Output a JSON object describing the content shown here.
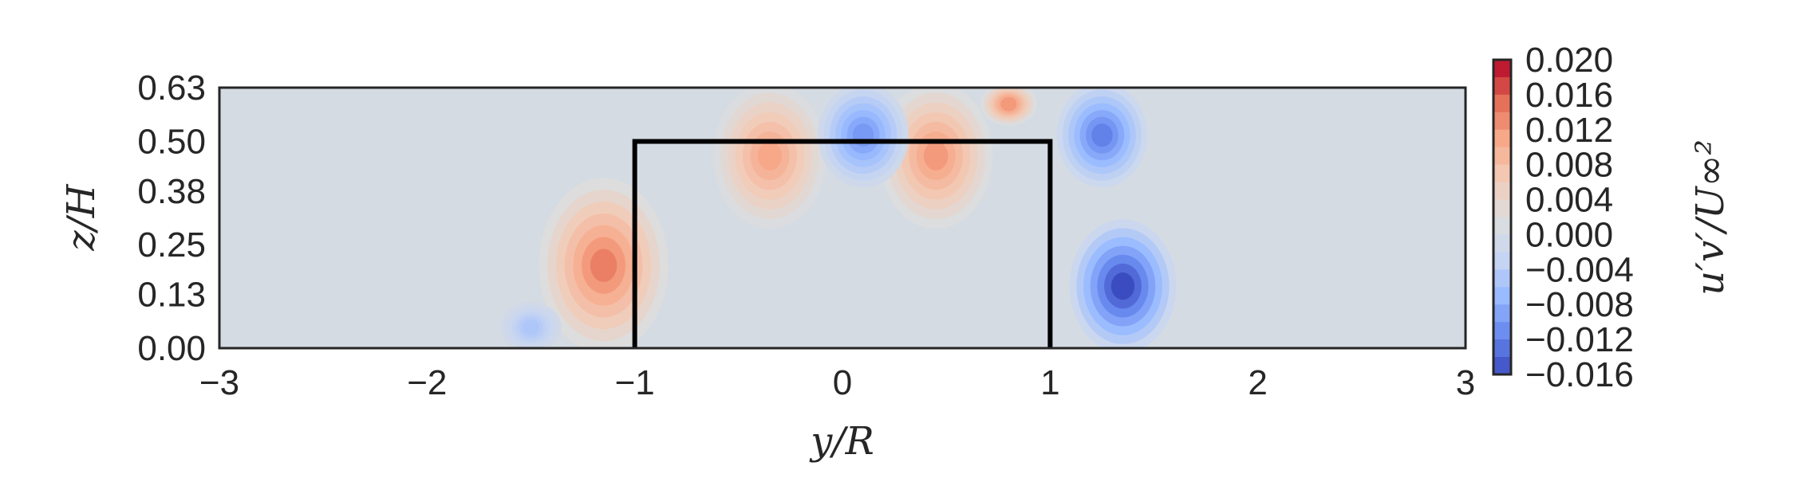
{
  "chart_data": {
    "type": "heatmap",
    "title": "",
    "xlabel": "y/R",
    "ylabel": "z/H",
    "colorbar_label": "u′v′/U∞²",
    "xlim": [
      -3,
      3
    ],
    "ylim": [
      0,
      0.63
    ],
    "x_ticks": [
      "−3",
      "−2",
      "−1",
      "0",
      "1",
      "2",
      "3"
    ],
    "x_tick_values": [
      -3,
      -2,
      -1,
      0,
      1,
      2,
      3
    ],
    "y_ticks": [
      "0.00",
      "0.13",
      "0.25",
      "0.38",
      "0.50",
      "0.63"
    ],
    "y_tick_values": [
      0.0,
      0.13,
      0.25,
      0.38,
      0.5,
      0.63
    ],
    "colorbar_ticks": [
      "0.020",
      "0.016",
      "0.012",
      "0.008",
      "0.004",
      "0.000",
      "−0.004",
      "−0.008",
      "−0.012",
      "−0.016"
    ],
    "colorbar_tick_values": [
      0.02,
      0.016,
      0.012,
      0.008,
      0.004,
      0.0,
      -0.004,
      -0.008,
      -0.012,
      -0.016
    ],
    "vmin": -0.016,
    "vmax": 0.02,
    "colormap": "coolwarm",
    "outline": {
      "label": "turbine rotor outline",
      "points": [
        [
          -1,
          0
        ],
        [
          -1,
          0.5
        ],
        [
          1,
          0.5
        ],
        [
          1,
          0
        ]
      ],
      "color": "#000000"
    },
    "features": [
      {
        "y": -1.15,
        "z_min": 0.0,
        "z_max": 0.4,
        "peak": 0.014
      },
      {
        "y": -0.35,
        "z_min": 0.3,
        "z_max": 0.63,
        "peak": 0.011
      },
      {
        "y": 0.45,
        "z_min": 0.3,
        "z_max": 0.63,
        "peak": 0.012
      },
      {
        "y": 0.8,
        "z_min": 0.55,
        "z_max": 0.63,
        "peak": 0.012
      },
      {
        "y": 0.1,
        "z_min": 0.4,
        "z_max": 0.63,
        "peak": -0.01
      },
      {
        "y": 1.25,
        "z_min": 0.4,
        "z_max": 0.63,
        "peak": -0.012
      },
      {
        "y": 1.35,
        "z_min": 0.0,
        "z_max": 0.3,
        "peak": -0.016
      },
      {
        "y": -1.5,
        "z_min": 0.0,
        "z_max": 0.1,
        "peak": -0.005
      }
    ]
  },
  "colors": {
    "background_field": "#d5dbe3",
    "frame": "#262626",
    "text": "#262626",
    "colormap_stops": [
      "#3b4cc0",
      "#6788ee",
      "#9abbff",
      "#c9d7f0",
      "#dddddd",
      "#f2cbb7",
      "#f7a889",
      "#e36a53",
      "#b40426"
    ]
  }
}
